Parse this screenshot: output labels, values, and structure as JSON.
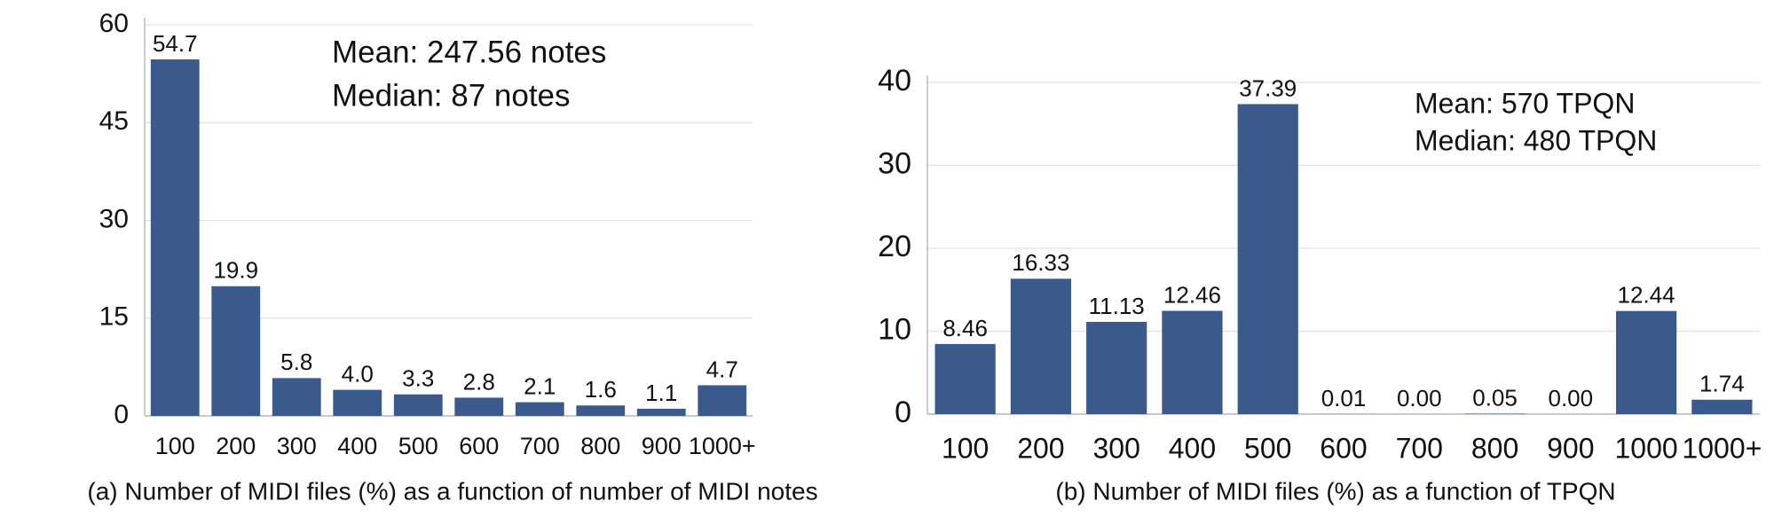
{
  "chart_data": [
    {
      "type": "bar",
      "categories": [
        "100",
        "200",
        "300",
        "400",
        "500",
        "600",
        "700",
        "800",
        "900",
        "1000+"
      ],
      "values": [
        54.7,
        19.9,
        5.8,
        4.0,
        3.3,
        2.8,
        2.1,
        1.6,
        1.1,
        4.7
      ],
      "value_labels": [
        "54.7",
        "19.9",
        "5.8",
        "4.0",
        "3.3",
        "2.8",
        "2.1",
        "1.6",
        "1.1",
        "4.7"
      ],
      "color": "#3b5a8c",
      "ylim": [
        0,
        60
      ],
      "yticks": [
        0,
        15,
        30,
        45,
        60
      ],
      "grid": true,
      "annotations": [
        "Mean: 247.56 notes",
        "Median: 87 notes"
      ],
      "x_label": "(a) Number of MIDI files (%) as a function of number of MIDI notes"
    },
    {
      "type": "bar",
      "categories": [
        "100",
        "200",
        "300",
        "400",
        "500",
        "600",
        "700",
        "800",
        "900",
        "1000",
        "1000+"
      ],
      "values": [
        8.46,
        16.33,
        11.13,
        12.46,
        37.39,
        0.01,
        0.0,
        0.05,
        0.0,
        12.44,
        1.74
      ],
      "value_labels": [
        "8.46",
        "16.33",
        "11.13",
        "12.46",
        "37.39",
        "0.01",
        "0.00",
        "0.05",
        "0.00",
        "12.44",
        "1.74"
      ],
      "color": "#3b5a8c",
      "ylim": [
        0,
        40
      ],
      "yticks": [
        0,
        10,
        20,
        30,
        40
      ],
      "grid": true,
      "annotations": [
        "Mean: 570 TPQN",
        "Median: 480 TPQN"
      ],
      "x_label": "(b) Number of MIDI files (%) as a function of TPQN"
    }
  ]
}
